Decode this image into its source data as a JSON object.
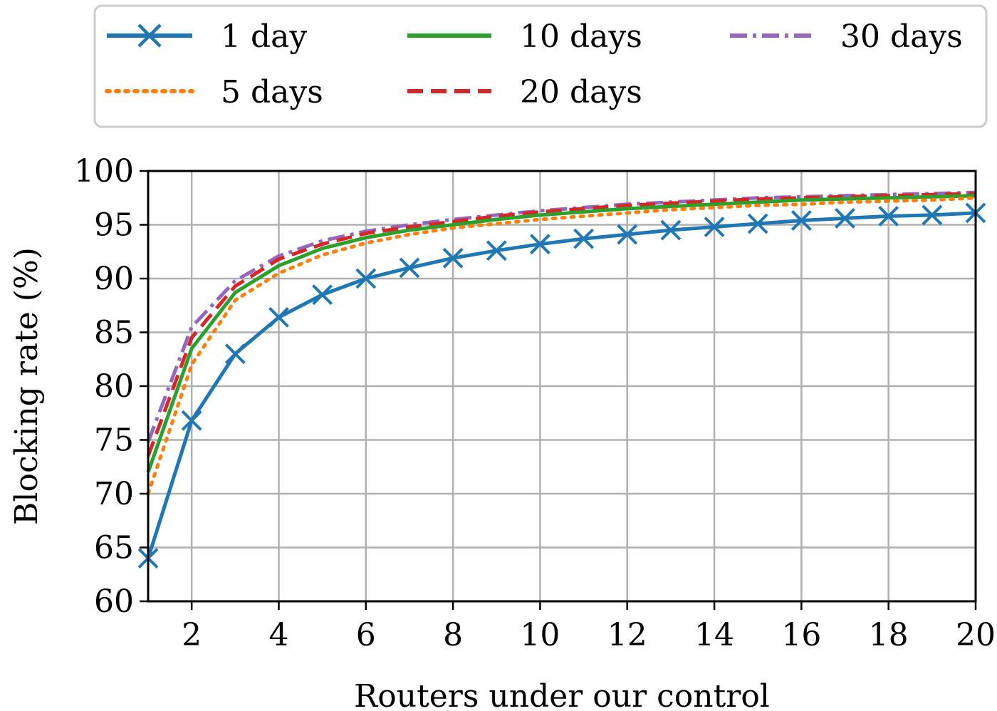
{
  "chart_data": {
    "type": "line",
    "xlabel": "Routers under our control",
    "ylabel": "Blocking rate (%)",
    "xlim": [
      1,
      20
    ],
    "ylim": [
      60,
      100
    ],
    "xticks": [
      2,
      4,
      6,
      8,
      10,
      12,
      14,
      16,
      18,
      20
    ],
    "yticks": [
      60,
      65,
      70,
      75,
      80,
      85,
      90,
      95,
      100
    ],
    "grid": true,
    "legend_position": "top, outside plot",
    "x": [
      1,
      2,
      3,
      4,
      5,
      6,
      7,
      8,
      9,
      10,
      11,
      12,
      13,
      14,
      15,
      16,
      17,
      18,
      19,
      20
    ],
    "series": [
      {
        "name": "1 day",
        "color": "#1f77b4",
        "style": "solid-x-marker",
        "values": [
          64.0,
          76.8,
          83.0,
          86.4,
          88.5,
          90.0,
          91.0,
          91.9,
          92.6,
          93.2,
          93.7,
          94.1,
          94.5,
          94.8,
          95.1,
          95.4,
          95.6,
          95.8,
          95.9,
          96.1
        ]
      },
      {
        "name": "5 days",
        "color": "#ff7f0e",
        "style": "dotted",
        "values": [
          70.0,
          82.0,
          88.0,
          90.5,
          92.2,
          93.3,
          94.1,
          94.7,
          95.1,
          95.5,
          95.8,
          96.1,
          96.4,
          96.6,
          96.8,
          96.9,
          97.1,
          97.2,
          97.3,
          97.5
        ]
      },
      {
        "name": "10 days",
        "color": "#2ca02c",
        "style": "solid",
        "values": [
          72.0,
          83.5,
          88.7,
          91.2,
          92.8,
          93.8,
          94.5,
          95.0,
          95.5,
          95.9,
          96.2,
          96.5,
          96.7,
          96.9,
          97.1,
          97.3,
          97.4,
          97.5,
          97.6,
          97.7
        ]
      },
      {
        "name": "20 days",
        "color": "#d62728",
        "style": "dashed",
        "values": [
          73.5,
          84.5,
          89.3,
          91.8,
          93.2,
          94.2,
          94.8,
          95.3,
          95.8,
          96.2,
          96.5,
          96.8,
          97.0,
          97.2,
          97.4,
          97.5,
          97.6,
          97.7,
          97.8,
          97.9
        ]
      },
      {
        "name": "30 days",
        "color": "#9467bd",
        "style": "dashdot",
        "values": [
          74.8,
          85.5,
          89.8,
          92.1,
          93.5,
          94.4,
          95.0,
          95.5,
          95.9,
          96.3,
          96.6,
          96.9,
          97.1,
          97.3,
          97.5,
          97.6,
          97.7,
          97.8,
          97.9,
          98.0
        ]
      }
    ]
  }
}
